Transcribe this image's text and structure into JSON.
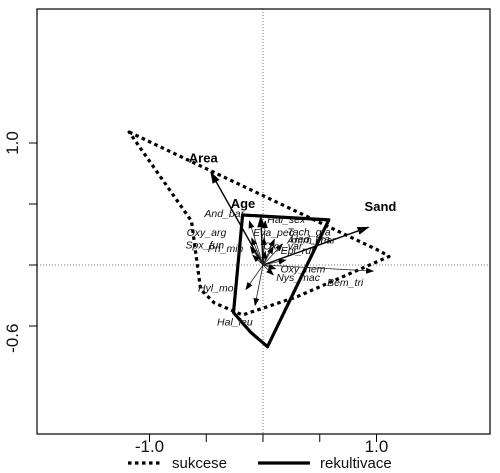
{
  "chart_data": {
    "type": "scatter",
    "title": "",
    "xlabel": "",
    "ylabel": "",
    "xlim": [
      -1.0,
      1.0
    ],
    "ylim": [
      -0.6,
      1.0
    ],
    "x_tick_labels": [
      "-1.0",
      "1.0"
    ],
    "y_tick_labels": [
      "1.0",
      "-0.6"
    ],
    "legend": [
      {
        "label": "sukcese",
        "style": "dotted"
      },
      {
        "label": "rekultivace",
        "style": "solid"
      }
    ],
    "environmental_vectors": [
      {
        "name": "Area",
        "x": -0.46,
        "y": 0.76
      },
      {
        "name": "Age",
        "x": -0.02,
        "y": 0.4
      },
      {
        "name": "Sand",
        "x": 0.93,
        "y": 0.31
      }
    ],
    "species": [
      {
        "name": "And_bar",
        "x": -0.12,
        "y": 0.36
      },
      {
        "name": "Hal_sex",
        "x": 0.02,
        "y": 0.36
      },
      {
        "name": "Oxy_arg",
        "x": -0.1,
        "y": 0.22
      },
      {
        "name": "Eva_pec",
        "x": 0.01,
        "y": 0.22
      },
      {
        "name": "Tach_gra",
        "x": 0.1,
        "y": 0.21
      },
      {
        "name": "Hed_kra",
        "x": 0.17,
        "y": 0.17
      },
      {
        "name": "Spx_fun",
        "x": -0.11,
        "y": 0.15
      },
      {
        "name": "Amm_mar",
        "x": 0.09,
        "y": 0.15
      },
      {
        "name": "Oxy_var",
        "x": 0.02,
        "y": 0.11
      },
      {
        "name": "Pri_min",
        "x": -0.09,
        "y": 0.08
      },
      {
        "name": "Epi_ruf",
        "x": 0.2,
        "y": 0.04
      },
      {
        "name": "Oxy_hem",
        "x": 0.11,
        "y": -0.03
      },
      {
        "name": "Nys_mac",
        "x": 0.09,
        "y": -0.08
      },
      {
        "name": "Bem_tri",
        "x": 0.97,
        "y": -0.05
      },
      {
        "name": "Hyl_mor",
        "x": -0.15,
        "y": -0.2
      },
      {
        "name": "Hal_leu",
        "x": -0.07,
        "y": -0.33
      }
    ],
    "hulls": [
      {
        "name": "sukcese",
        "style": "dotted",
        "points": [
          [
            -1.18,
            1.09
          ],
          [
            1.04,
            0.11
          ],
          [
            1.11,
            0.07
          ],
          [
            0.3,
            -0.26
          ],
          [
            -0.18,
            -0.41
          ],
          [
            -0.43,
            -0.31
          ],
          [
            -0.55,
            -0.2
          ],
          [
            -0.63,
            0.36
          ]
        ]
      },
      {
        "name": "rekultivace",
        "style": "solid",
        "points": [
          [
            -0.18,
            0.41
          ],
          [
            0.58,
            0.37
          ],
          [
            0.04,
            -0.67
          ],
          [
            -0.11,
            -0.55
          ],
          [
            -0.26,
            -0.39
          ]
        ]
      }
    ]
  }
}
